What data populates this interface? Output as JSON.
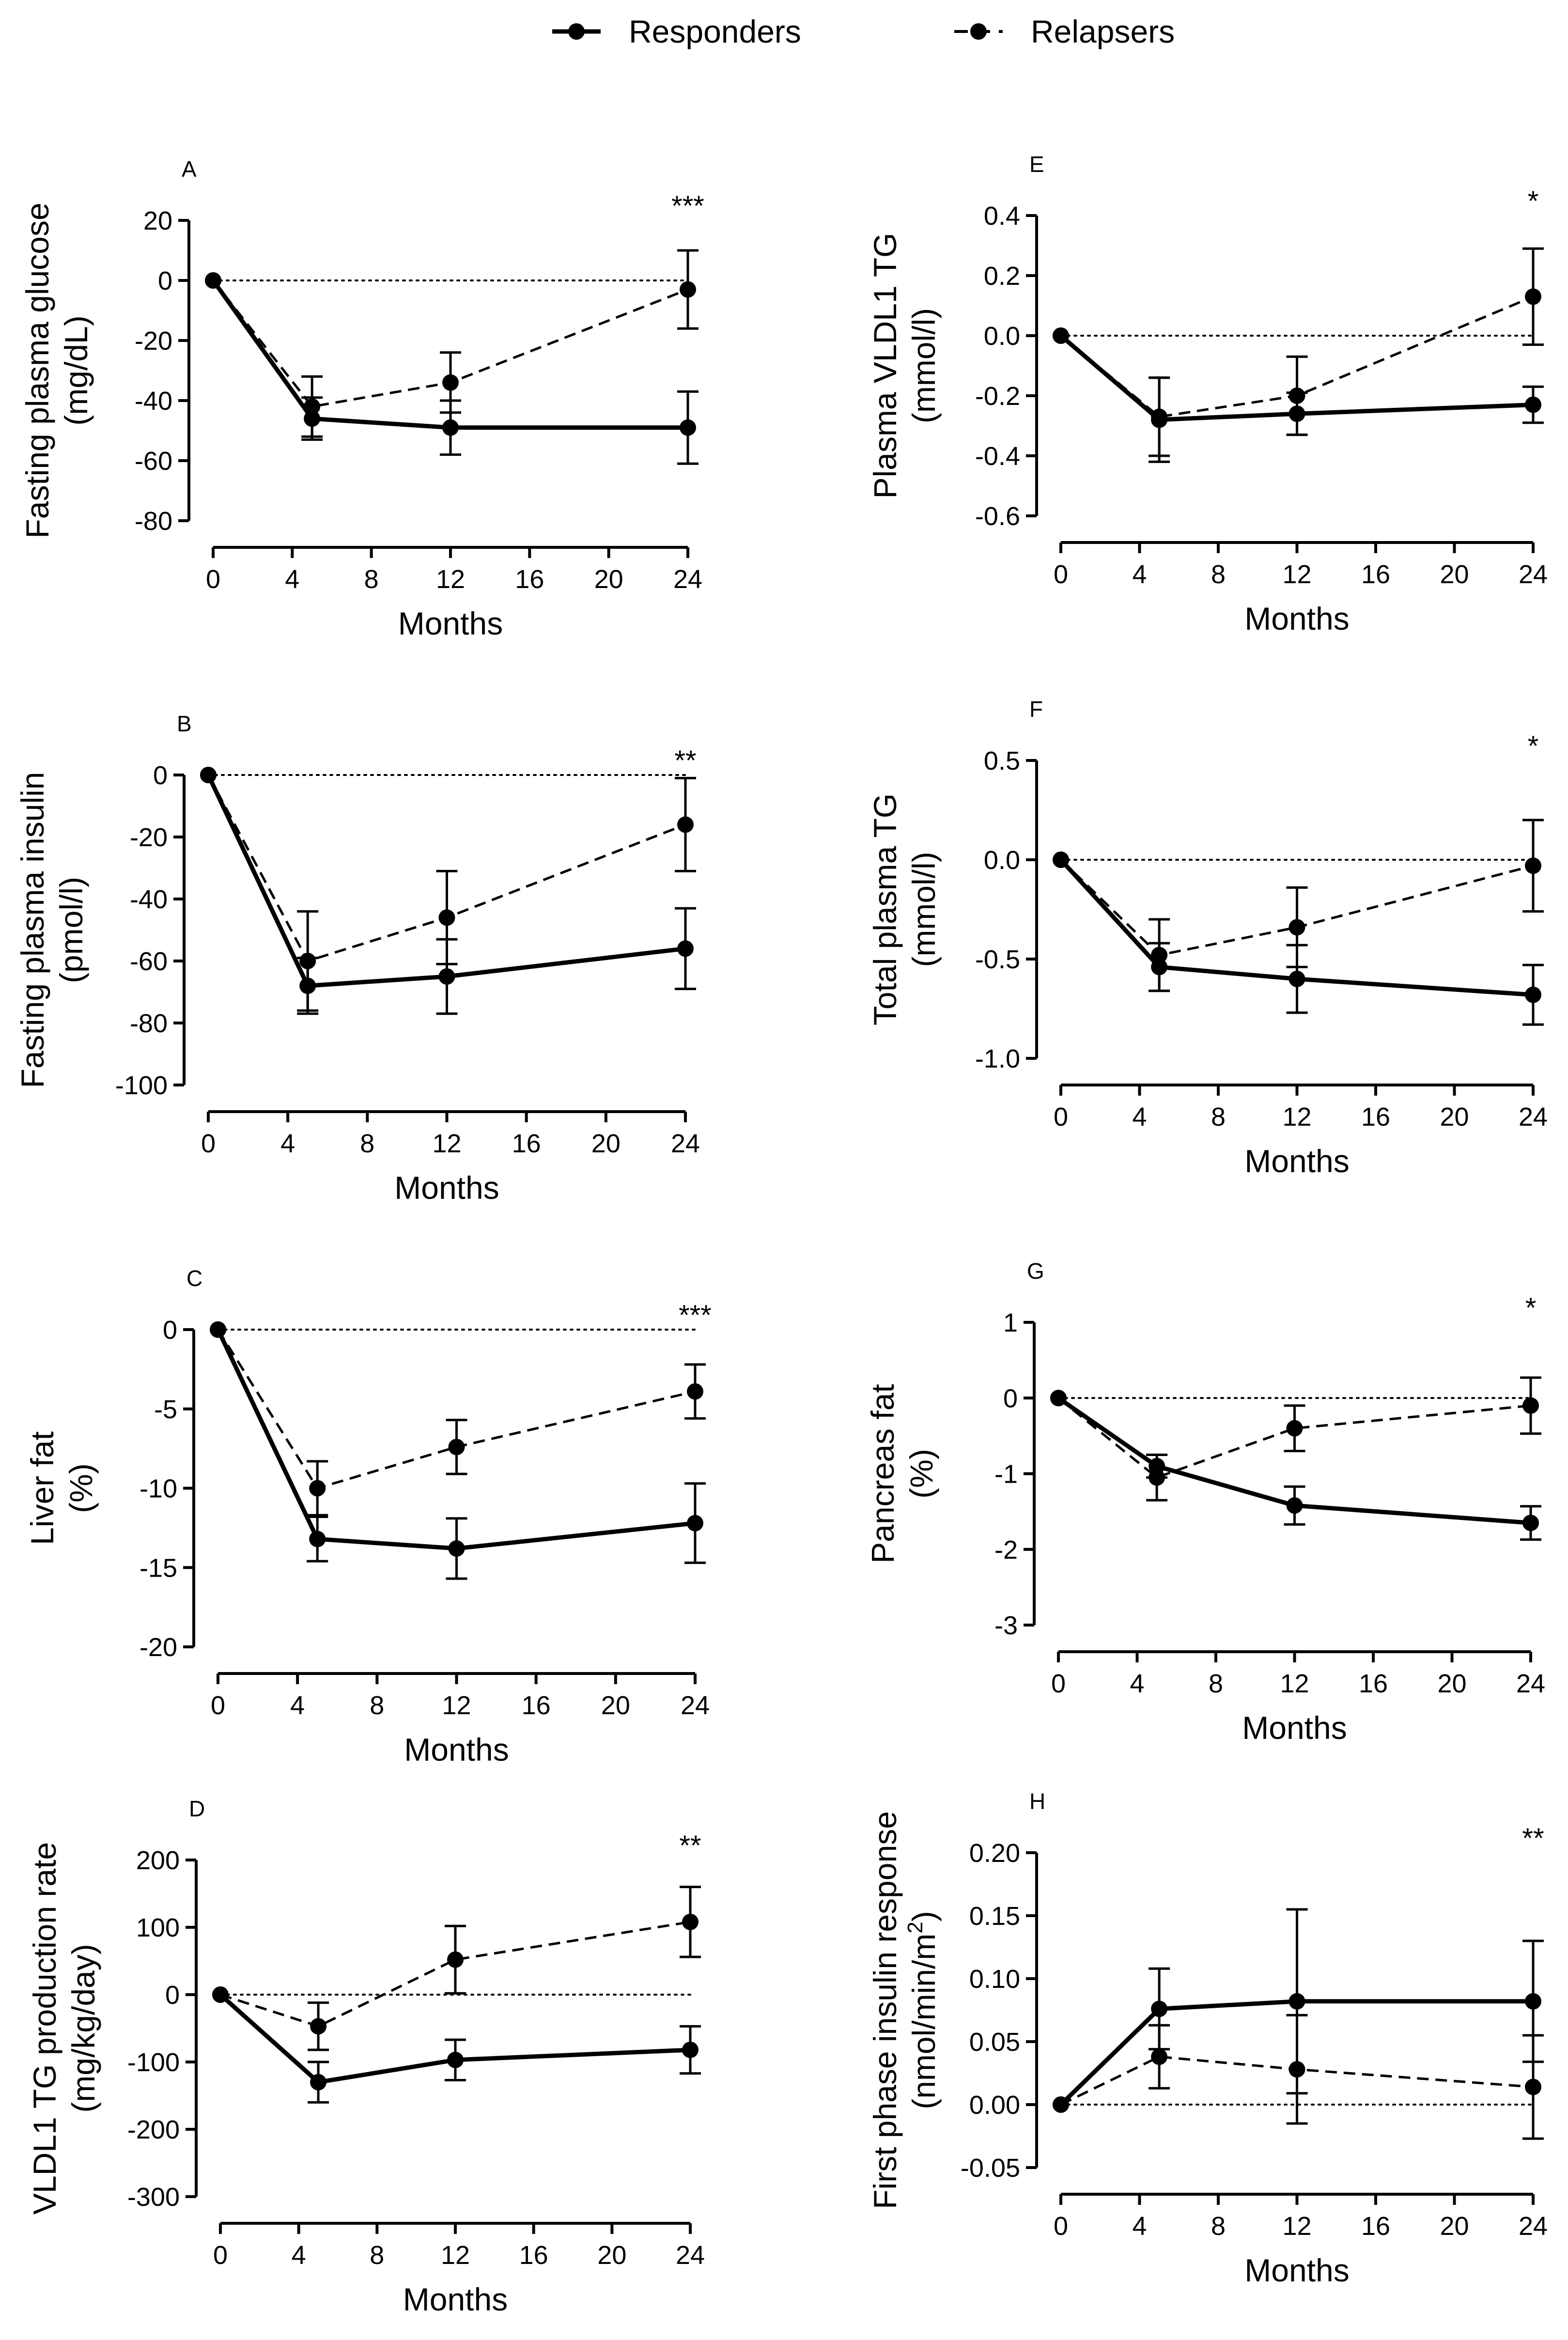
{
  "legend": {
    "responders_label": "Responders",
    "relapsers_label": "Relapsers"
  },
  "colors": {
    "ink": "#000000",
    "background": "#ffffff"
  },
  "chart_data": [
    {
      "panel": "A",
      "type": "line",
      "ylabel": [
        "Fasting plasma glucose",
        "(mg/dL)"
      ],
      "xlabel": "Months",
      "xlim": [
        0,
        24
      ],
      "xticks": [
        0,
        4,
        8,
        12,
        16,
        20,
        24
      ],
      "ylim": [
        -80,
        20
      ],
      "yticks": [
        20,
        0,
        -20,
        -40,
        -60,
        -80
      ],
      "ytick_labels": [
        "20",
        "0",
        "-20",
        "-40",
        "-60",
        "-80"
      ],
      "reference_line": 0,
      "significance": "***",
      "x": [
        0,
        5,
        12,
        24
      ],
      "series": [
        {
          "name": "Responders",
          "style": "solid",
          "values": [
            0,
            -46,
            -49,
            -49
          ],
          "err": [
            0,
            7,
            9,
            12
          ]
        },
        {
          "name": "Relapsers",
          "style": "dashed",
          "values": [
            0,
            -42,
            -34,
            -3
          ],
          "err": [
            0,
            10,
            10,
            13
          ]
        }
      ]
    },
    {
      "panel": "B",
      "type": "line",
      "ylabel": [
        "Fasting plasma insulin",
        "(pmol/l)"
      ],
      "xlabel": "Months",
      "xlim": [
        0,
        24
      ],
      "xticks": [
        0,
        4,
        8,
        12,
        16,
        20,
        24
      ],
      "ylim": [
        -100,
        0
      ],
      "yticks": [
        0,
        -20,
        -40,
        -60,
        -80,
        -100
      ],
      "ytick_labels": [
        "0",
        "-20",
        "-40",
        "-60",
        "-80",
        "-100"
      ],
      "reference_line": 0,
      "significance": "**",
      "x": [
        0,
        5,
        12,
        24
      ],
      "series": [
        {
          "name": "Responders",
          "style": "solid",
          "values": [
            0,
            -68,
            -65,
            -56
          ],
          "err": [
            0,
            9,
            12,
            13
          ]
        },
        {
          "name": "Relapsers",
          "style": "dashed",
          "values": [
            0,
            -60,
            -46,
            -16
          ],
          "err": [
            0,
            16,
            15,
            15
          ]
        }
      ]
    },
    {
      "panel": "C",
      "type": "line",
      "ylabel": [
        "Liver fat",
        "(%)"
      ],
      "xlabel": "Months",
      "xlim": [
        0,
        24
      ],
      "xticks": [
        0,
        4,
        8,
        12,
        16,
        20,
        24
      ],
      "ylim": [
        -20,
        0
      ],
      "yticks": [
        0,
        -5,
        -10,
        -15,
        -20
      ],
      "ytick_labels": [
        "0",
        "-5",
        "-10",
        "-15",
        "-20"
      ],
      "reference_line": 0,
      "significance": "***",
      "x": [
        0,
        5,
        12,
        24
      ],
      "series": [
        {
          "name": "Responders",
          "style": "solid",
          "values": [
            0,
            -13.2,
            -13.8,
            -12.2
          ],
          "err": [
            0,
            1.4,
            1.9,
            2.5
          ]
        },
        {
          "name": "Relapsers",
          "style": "dashed",
          "values": [
            0,
            -10,
            -7.4,
            -3.9
          ],
          "err": [
            0,
            1.7,
            1.7,
            1.7
          ]
        }
      ]
    },
    {
      "panel": "D",
      "type": "line",
      "ylabel": [
        "VLDL1 TG production rate",
        "(mg/kg/day)"
      ],
      "xlabel": "Months",
      "xlim": [
        0,
        24
      ],
      "xticks": [
        0,
        4,
        8,
        12,
        16,
        20,
        24
      ],
      "ylim": [
        -300,
        200
      ],
      "yticks": [
        200,
        100,
        0,
        -100,
        -200,
        -300
      ],
      "ytick_labels": [
        "200",
        "100",
        "0",
        "-100",
        "-200",
        "-300"
      ],
      "reference_line": 0,
      "significance": "**",
      "x": [
        0,
        5,
        12,
        24
      ],
      "series": [
        {
          "name": "Responders",
          "style": "solid",
          "values": [
            0,
            -130,
            -97,
            -82
          ],
          "err": [
            0,
            30,
            30,
            35
          ]
        },
        {
          "name": "Relapsers",
          "style": "dashed",
          "values": [
            0,
            -47,
            52,
            108
          ],
          "err": [
            0,
            35,
            50,
            52
          ]
        }
      ]
    },
    {
      "panel": "E",
      "type": "line",
      "ylabel": [
        "Plasma VLDL1 TG",
        "(mmol/l)"
      ],
      "xlabel": "Months",
      "xlim": [
        0,
        24
      ],
      "xticks": [
        0,
        4,
        8,
        12,
        16,
        20,
        24
      ],
      "ylim": [
        -0.6,
        0.4
      ],
      "yticks": [
        0.4,
        0.2,
        0.0,
        -0.2,
        -0.4,
        -0.6
      ],
      "ytick_labels": [
        "0.4",
        "0.2",
        "0.0",
        "-0.2",
        "-0.4",
        "-0.6"
      ],
      "reference_line": 0,
      "significance": "*",
      "x": [
        0,
        5,
        12,
        24
      ],
      "series": [
        {
          "name": "Responders",
          "style": "solid",
          "values": [
            0,
            -0.28,
            -0.26,
            -0.23
          ],
          "err": [
            0,
            0.14,
            0.07,
            0.06
          ]
        },
        {
          "name": "Relapsers",
          "style": "dashed",
          "values": [
            0,
            -0.27,
            -0.2,
            0.13
          ],
          "err": [
            0,
            0.13,
            0.13,
            0.16
          ]
        }
      ]
    },
    {
      "panel": "F",
      "type": "line",
      "ylabel": [
        "Total plasma TG",
        "(mmol/l)"
      ],
      "xlabel": "Months",
      "xlim": [
        0,
        24
      ],
      "xticks": [
        0,
        4,
        8,
        12,
        16,
        20,
        24
      ],
      "ylim": [
        -1.0,
        0.5
      ],
      "yticks": [
        0.5,
        0.0,
        -0.5,
        -1.0
      ],
      "ytick_labels": [
        "0.5",
        "0.0",
        "-0.5",
        "-1.0"
      ],
      "reference_line": 0,
      "significance": "*",
      "x": [
        0,
        5,
        12,
        24
      ],
      "series": [
        {
          "name": "Responders",
          "style": "solid",
          "values": [
            0,
            -0.54,
            -0.6,
            -0.68
          ],
          "err": [
            0,
            0.12,
            0.17,
            0.15
          ]
        },
        {
          "name": "Relapsers",
          "style": "dashed",
          "values": [
            0,
            -0.48,
            -0.34,
            -0.03
          ],
          "err": [
            0,
            0.18,
            0.2,
            0.23
          ]
        }
      ]
    },
    {
      "panel": "G",
      "type": "line",
      "ylabel": [
        "Pancreas fat",
        "(%)"
      ],
      "xlabel": "Months",
      "xlim": [
        0,
        24
      ],
      "xticks": [
        0,
        4,
        8,
        12,
        16,
        20,
        24
      ],
      "ylim": [
        -3,
        1
      ],
      "yticks": [
        1,
        0,
        -1,
        -2,
        -3
      ],
      "ytick_labels": [
        "1",
        "0",
        "-1",
        "-2",
        "-3"
      ],
      "reference_line": 0,
      "significance": "*",
      "x": [
        0,
        5,
        12,
        24
      ],
      "series": [
        {
          "name": "Responders",
          "style": "solid",
          "values": [
            0,
            -0.9,
            -1.42,
            -1.65
          ],
          "err": [
            0,
            0.15,
            0.25,
            0.22
          ]
        },
        {
          "name": "Relapsers",
          "style": "dashed",
          "values": [
            0,
            -1.05,
            -0.4,
            -0.1
          ],
          "err": [
            0,
            0.3,
            0.3,
            0.37
          ]
        }
      ]
    },
    {
      "panel": "H",
      "type": "line",
      "ylabel": [
        "First phase insulin response",
        "(nmol/min/m2)"
      ],
      "xlabel": "Months",
      "xlim": [
        0,
        24
      ],
      "xticks": [
        0,
        4,
        8,
        12,
        16,
        20,
        24
      ],
      "ylim": [
        -0.05,
        0.2
      ],
      "yticks": [
        0.2,
        0.15,
        0.1,
        0.05,
        0.0,
        -0.05
      ],
      "ytick_labels": [
        "0.20",
        "0.15",
        "0.10",
        "0.05",
        "0.00",
        "-0.05"
      ],
      "reference_line": 0,
      "significance": "**",
      "x": [
        0,
        5,
        12,
        24
      ],
      "series": [
        {
          "name": "Responders",
          "style": "solid",
          "values": [
            0,
            0.076,
            0.082,
            0.082
          ],
          "err": [
            0,
            0.032,
            0.073,
            0.048
          ]
        },
        {
          "name": "Relapsers",
          "style": "dashed",
          "values": [
            0,
            0.038,
            0.028,
            0.014
          ],
          "err": [
            0,
            0.025,
            0.043,
            0.041
          ]
        }
      ]
    }
  ]
}
